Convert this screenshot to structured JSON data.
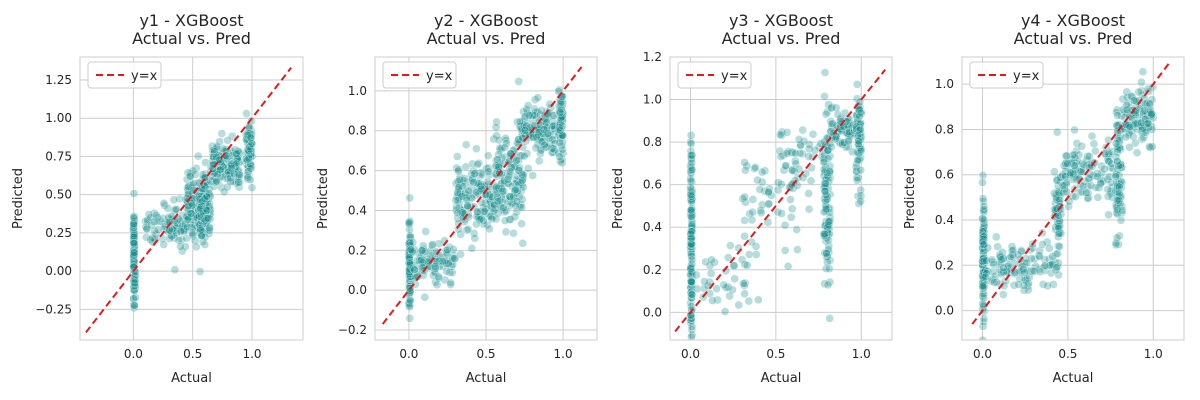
{
  "figure": {
    "background": "#ffffff"
  },
  "style": {
    "point_color": "#0f8a8a",
    "point_edge": "#ffffff",
    "point_opacity": 0.3,
    "ref_line_color": "#e31a1c",
    "grid_color": "#cccccc",
    "spine_color": "#cccccc"
  },
  "chart_data": [
    {
      "type": "scatter",
      "title": "y1 - XGBoost\nActual vs. Pred",
      "xlabel": "Actual",
      "ylabel": "Predicted",
      "xlim": [
        -0.45,
        1.43
      ],
      "ylim": [
        -0.45,
        1.4
      ],
      "xticks": [
        0.0,
        0.5,
        1.0
      ],
      "xtick_labels": [
        "0.0",
        "0.5",
        "1.0"
      ],
      "yticks": [
        -0.25,
        0.0,
        0.25,
        0.5,
        0.75,
        1.0,
        1.25
      ],
      "ytick_labels": [
        "−0.25",
        "0.00",
        "0.25",
        "0.50",
        "0.75",
        "1.00",
        "1.25"
      ],
      "grid": true,
      "legend": {
        "position": "top-left",
        "entries": [
          "y=x"
        ]
      },
      "ref_line": {
        "label": "y=x",
        "from": [
          -0.4,
          -0.4
        ],
        "to": [
          1.33,
          1.33
        ]
      },
      "clusters": [
        {
          "x": [
            0.0,
            0.01
          ],
          "y_center": 0.15,
          "y_spread": 0.2,
          "count": 90
        },
        {
          "x": [
            0.0,
            0.02
          ],
          "y_center": -0.1,
          "y_spread": 0.1,
          "count": 20
        },
        {
          "x": [
            0.1,
            0.45
          ],
          "y_center": 0.3,
          "y_spread": 0.12,
          "count": 90
        },
        {
          "x": [
            0.45,
            0.62
          ],
          "y_center": 0.45,
          "y_spread": 0.18,
          "count": 160
        },
        {
          "x": [
            0.55,
            0.65
          ],
          "y_center": 0.4,
          "y_spread": 0.15,
          "count": 110
        },
        {
          "x": [
            0.65,
            0.9
          ],
          "y_center": 0.7,
          "y_spread": 0.12,
          "count": 150
        },
        {
          "x": [
            0.95,
            1.0
          ],
          "y_center": 0.8,
          "y_spread": 0.2,
          "count": 70
        }
      ]
    },
    {
      "type": "scatter",
      "title": "y2 - XGBoost\nActual vs. Pred",
      "xlabel": "Actual",
      "ylabel": "Predicted",
      "xlim": [
        -0.22,
        1.22
      ],
      "ylim": [
        -0.25,
        1.17
      ],
      "xticks": [
        0.0,
        0.5,
        1.0
      ],
      "xtick_labels": [
        "0.0",
        "0.5",
        "1.0"
      ],
      "yticks": [
        -0.2,
        0.0,
        0.2,
        0.4,
        0.6,
        0.8,
        1.0
      ],
      "ytick_labels": [
        "−0.2",
        "0.0",
        "0.2",
        "0.4",
        "0.6",
        "0.8",
        "1.0"
      ],
      "grid": true,
      "legend": {
        "position": "top-left",
        "entries": [
          "y=x"
        ]
      },
      "ref_line": {
        "label": "y=x",
        "from": [
          -0.17,
          -0.17
        ],
        "to": [
          1.12,
          1.12
        ]
      },
      "clusters": [
        {
          "x": [
            0.0,
            0.01
          ],
          "y_center": 0.12,
          "y_spread": 0.18,
          "count": 90
        },
        {
          "x": [
            0.0,
            0.3
          ],
          "y_center": 0.15,
          "y_spread": 0.08,
          "count": 100
        },
        {
          "x": [
            0.3,
            0.55
          ],
          "y_center": 0.45,
          "y_spread": 0.15,
          "count": 150
        },
        {
          "x": [
            0.55,
            0.75
          ],
          "y_center": 0.55,
          "y_spread": 0.2,
          "count": 150
        },
        {
          "x": [
            0.7,
            0.95
          ],
          "y_center": 0.8,
          "y_spread": 0.12,
          "count": 140
        },
        {
          "x": [
            0.97,
            1.0
          ],
          "y_center": 0.85,
          "y_spread": 0.15,
          "count": 60
        }
      ]
    },
    {
      "type": "scatter",
      "title": "y3 - XGBoost\nActual vs. Pred",
      "xlabel": "Actual",
      "ylabel": "Predicted",
      "xlim": [
        -0.12,
        1.18
      ],
      "ylim": [
        -0.13,
        1.2
      ],
      "xticks": [
        0.0,
        0.5,
        1.0
      ],
      "xtick_labels": [
        "0.0",
        "0.5",
        "1.0"
      ],
      "yticks": [
        0.0,
        0.2,
        0.4,
        0.6,
        0.8,
        1.0,
        1.2
      ],
      "ytick_labels": [
        "0.0",
        "0.2",
        "0.4",
        "0.6",
        "0.8",
        "1.0",
        "1.2"
      ],
      "grid": true,
      "legend": {
        "position": "top-left",
        "entries": [
          "y=x"
        ]
      },
      "ref_line": {
        "label": "y=x",
        "from": [
          -0.09,
          -0.09
        ],
        "to": [
          1.14,
          1.14
        ]
      },
      "clusters": [
        {
          "x": [
            0.0,
            0.01
          ],
          "y_center": 0.35,
          "y_spread": 0.4,
          "count": 130
        },
        {
          "x": [
            0.02,
            0.4
          ],
          "y_center": 0.15,
          "y_spread": 0.12,
          "count": 40
        },
        {
          "x": [
            0.3,
            0.7
          ],
          "y_center": 0.55,
          "y_spread": 0.2,
          "count": 60
        },
        {
          "x": [
            0.5,
            0.78
          ],
          "y_center": 0.75,
          "y_spread": 0.12,
          "count": 40
        },
        {
          "x": [
            0.78,
            0.82
          ],
          "y_center": 0.55,
          "y_spread": 0.3,
          "count": 110
        },
        {
          "x": [
            0.82,
            0.96
          ],
          "y_center": 0.85,
          "y_spread": 0.08,
          "count": 70
        },
        {
          "x": [
            0.97,
            1.0
          ],
          "y_center": 0.8,
          "y_spread": 0.18,
          "count": 70
        }
      ]
    },
    {
      "type": "scatter",
      "title": "y4 - XGBoost\nActual vs. Pred",
      "xlabel": "Actual",
      "ylabel": "Predicted",
      "xlim": [
        -0.12,
        1.18
      ],
      "ylim": [
        -0.13,
        1.12
      ],
      "xticks": [
        0.0,
        0.5,
        1.0
      ],
      "xtick_labels": [
        "0.0",
        "0.5",
        "1.0"
      ],
      "yticks": [
        0.0,
        0.2,
        0.4,
        0.6,
        0.8,
        1.0
      ],
      "ytick_labels": [
        "0.0",
        "0.2",
        "0.4",
        "0.6",
        "0.8",
        "1.0"
      ],
      "grid": true,
      "legend": {
        "position": "top-left",
        "entries": [
          "y=x"
        ]
      },
      "ref_line": {
        "label": "y=x",
        "from": [
          -0.06,
          -0.06
        ],
        "to": [
          1.1,
          1.1
        ]
      },
      "clusters": [
        {
          "x": [
            0.0,
            0.01
          ],
          "y_center": 0.25,
          "y_spread": 0.22,
          "count": 100
        },
        {
          "x": [
            0.0,
            0.45
          ],
          "y_center": 0.2,
          "y_spread": 0.1,
          "count": 120
        },
        {
          "x": [
            0.42,
            0.46
          ],
          "y_center": 0.45,
          "y_spread": 0.15,
          "count": 60
        },
        {
          "x": [
            0.46,
            0.78
          ],
          "y_center": 0.6,
          "y_spread": 0.12,
          "count": 120
        },
        {
          "x": [
            0.78,
            0.82
          ],
          "y_center": 0.6,
          "y_spread": 0.25,
          "count": 80
        },
        {
          "x": [
            0.82,
            1.0
          ],
          "y_center": 0.85,
          "y_spread": 0.12,
          "count": 110
        }
      ]
    }
  ]
}
